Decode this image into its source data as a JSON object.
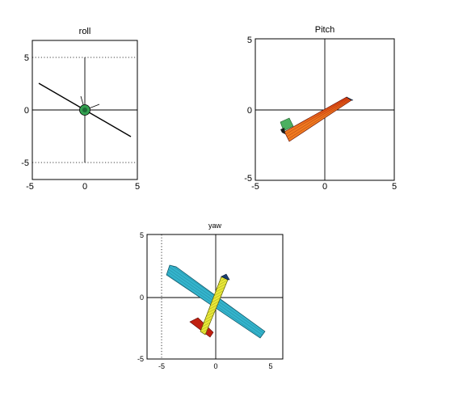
{
  "chart_data": [
    {
      "type": "3d-model-projection",
      "title": "roll",
      "xlim": [
        -5,
        5
      ],
      "ylim": [
        -5,
        5
      ],
      "xticks": [
        "-5",
        "0",
        "5"
      ],
      "yticks": [
        "-5",
        "0",
        "5"
      ],
      "grid": true,
      "colors": {
        "wing": "#000000",
        "body": "#33a050"
      }
    },
    {
      "type": "3d-model-projection",
      "title": "Pitch",
      "xlim": [
        -5,
        5
      ],
      "ylim": [
        -5,
        5
      ],
      "xticks": [
        "-5",
        "0",
        "5"
      ],
      "yticks": [
        "-5",
        "0",
        "5"
      ],
      "grid": true,
      "colors": {
        "fuselage_light": "#f07a20",
        "fuselage_dark": "#a00c08",
        "tail": "#4cb060",
        "nose": "#1a3e70"
      }
    },
    {
      "type": "3d-model-projection",
      "title": "yaw",
      "xlim": [
        -5,
        5
      ],
      "ylim": [
        -5,
        5
      ],
      "xticks": [
        "-5",
        "0",
        "5"
      ],
      "yticks": [
        "-5",
        "0",
        "5"
      ],
      "grid": true,
      "colors": {
        "wing": "#34b4cc",
        "fuselage": "#e8e838",
        "tail": "#c02010",
        "nose": "#1a3e70"
      }
    }
  ]
}
